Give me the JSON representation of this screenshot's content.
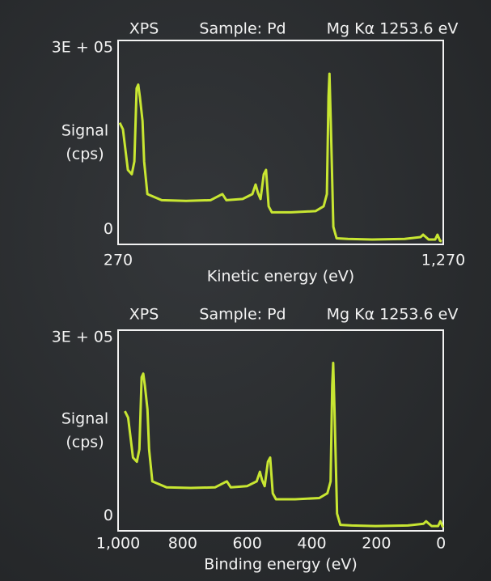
{
  "chart_data": [
    {
      "type": "line",
      "title": "XPS",
      "subtitle": "Sample: Pd",
      "annotation": "Mg Kα 1253.6 eV",
      "ylabel": [
        "Signal",
        "(cps)"
      ],
      "xlabel": "Kinetic energy (eV)",
      "xlim": [
        270,
        1270
      ],
      "xticks": [
        270,
        {
          "value": 1270,
          "label": "1,270"
        }
      ],
      "ylim": [
        -25000,
        312000
      ],
      "yticks": [
        0,
        {
          "value": 300000,
          "label": "3E + 05"
        }
      ],
      "x": [
        275,
        285,
        300,
        312,
        320,
        327,
        332,
        337,
        345,
        350,
        360,
        404,
        479,
        554,
        583,
        591,
        603,
        653,
        683,
        693,
        700,
        708,
        718,
        725,
        733,
        743,
        802,
        877,
        902,
        912,
        917,
        920,
        924,
        932,
        942,
        977,
        1051,
        1151,
        1200,
        1208,
        1225,
        1245,
        1252,
        1260,
        1265
      ],
      "series": [
        {
          "color": "#c8e632",
          "values": [
            176000,
            165000,
            98000,
            91000,
            112000,
            233000,
            239000,
            219000,
            179000,
            112000,
            58000,
            48000,
            47000,
            48000,
            56000,
            58000,
            48000,
            50000,
            58000,
            74000,
            60000,
            50000,
            91000,
            98000,
            38000,
            28000,
            28000,
            30000,
            38000,
            58000,
            219000,
            257000,
            179000,
            4000,
            -15000,
            -16000,
            -17000,
            -16000,
            -13000,
            -9000,
            -17000,
            -17000,
            -9000,
            -19000,
            -20000
          ]
        }
      ]
    },
    {
      "type": "line",
      "title": "XPS",
      "subtitle": "Sample: Pd",
      "annotation": "Mg Kα 1253.6 eV",
      "ylabel": [
        "Signal",
        "(cps)"
      ],
      "xlabel": "Binding energy (eV)",
      "xlim": [
        1000,
        -7
      ],
      "xticks": [
        {
          "value": 1000,
          "label": "1,000"
        },
        800,
        600,
        400,
        200,
        0
      ],
      "ylim": [
        -25000,
        312000
      ],
      "yticks": [
        0,
        {
          "value": 300000,
          "label": "3E + 05"
        }
      ],
      "x": [
        979,
        969,
        954,
        942,
        934,
        927,
        922,
        917,
        909,
        904,
        894,
        850,
        775,
        700,
        671,
        663,
        651,
        601,
        571,
        561,
        554,
        546,
        536,
        529,
        521,
        511,
        452,
        377,
        352,
        342,
        337,
        334,
        330,
        322,
        312,
        277,
        203,
        103,
        54,
        46,
        29,
        9,
        2,
        -6
      ],
      "series": [
        {
          "color": "#c8e632",
          "values": [
            176000,
            165000,
            98000,
            91000,
            112000,
            233000,
            239000,
            219000,
            179000,
            112000,
            58000,
            48000,
            47000,
            48000,
            56000,
            58000,
            48000,
            50000,
            58000,
            74000,
            60000,
            50000,
            91000,
            98000,
            38000,
            28000,
            28000,
            30000,
            38000,
            58000,
            219000,
            257000,
            179000,
            4000,
            -15000,
            -16000,
            -17000,
            -16000,
            -13000,
            -9000,
            -17000,
            -17000,
            -9000,
            -19000
          ]
        }
      ]
    }
  ]
}
